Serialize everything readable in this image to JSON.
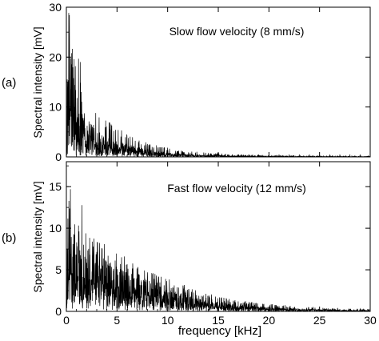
{
  "figure": {
    "xlabel": "frequency [kHz]"
  },
  "chart_data": [
    {
      "type": "line",
      "panel_label": "(a)",
      "title": "Slow flow velocity (8 mm/s)",
      "xlabel": "frequency [kHz]",
      "ylabel": "Spectral intensity [mV]",
      "xlim": [
        0,
        30
      ],
      "ylim": [
        0,
        30
      ],
      "xticks": [
        "0",
        "5",
        "10",
        "15",
        "20",
        "25",
        "30"
      ],
      "xtick_labels_shown": false,
      "yticks": [
        "0",
        "10",
        "20",
        "30"
      ],
      "grid": false,
      "series": [
        {
          "x": [
            0.0,
            0.1,
            0.2,
            0.3,
            0.4,
            0.5,
            0.6,
            0.7,
            0.8,
            0.9,
            1.0,
            1.25,
            1.5,
            1.75,
            2.0,
            2.5,
            3.0,
            3.5,
            4.0,
            5.0,
            6.0,
            7.0,
            8.0,
            9.0,
            10.0,
            11.0,
            12.0,
            14.0,
            16.0,
            18.0,
            20.0,
            25.0,
            30.0
          ],
          "y_peak": [
            2.0,
            20.0,
            30.0,
            30.0,
            30.0,
            28.0,
            25.0,
            22.0,
            22.0,
            19.0,
            16.0,
            24.0,
            15.0,
            13.0,
            12.5,
            11.0,
            10.0,
            9.0,
            8.0,
            6.0,
            5.0,
            4.0,
            3.0,
            2.5,
            2.0,
            1.5,
            1.2,
            0.8,
            0.6,
            0.4,
            0.3,
            0.2,
            0.2
          ],
          "y_mean": [
            0.5,
            5.0,
            12.0,
            14.0,
            13.0,
            12.0,
            11.0,
            10.0,
            9.0,
            8.0,
            7.0,
            6.0,
            5.5,
            5.0,
            4.5,
            3.8,
            3.2,
            2.8,
            2.4,
            1.8,
            1.4,
            1.1,
            0.9,
            0.7,
            0.5,
            0.4,
            0.3,
            0.2,
            0.15,
            0.1,
            0.08,
            0.06,
            0.05
          ]
        }
      ]
    },
    {
      "type": "line",
      "panel_label": "(b)",
      "title": "Fast flow velocity (12 mm/s)",
      "xlabel": "frequency [kHz]",
      "ylabel": "Spectral intensity [mV]",
      "xlim": [
        0,
        30
      ],
      "ylim": [
        0,
        18
      ],
      "xticks": [
        "0",
        "5",
        "10",
        "15",
        "20",
        "25",
        "30"
      ],
      "xtick_labels_shown": true,
      "yticks": [
        "0",
        "5",
        "10",
        "15"
      ],
      "grid": false,
      "series": [
        {
          "x": [
            0.0,
            0.1,
            0.2,
            0.3,
            0.5,
            0.7,
            1.0,
            1.25,
            1.5,
            2.0,
            2.5,
            3.0,
            4.0,
            5.0,
            6.0,
            7.0,
            8.0,
            9.0,
            10.0,
            11.0,
            12.0,
            13.0,
            14.0,
            16.0,
            18.0,
            20.0,
            22.0,
            25.0,
            28.0,
            30.0
          ],
          "y_peak": [
            1.0,
            12.0,
            14.0,
            15.3,
            14.5,
            12.5,
            11.5,
            10.5,
            13.0,
            10.0,
            9.0,
            9.0,
            8.0,
            7.0,
            6.5,
            5.5,
            5.0,
            4.5,
            4.0,
            3.5,
            3.0,
            2.6,
            2.2,
            1.6,
            1.2,
            0.9,
            0.7,
            0.5,
            0.35,
            0.3
          ],
          "y_mean": [
            0.3,
            3.0,
            5.0,
            5.5,
            5.5,
            5.3,
            5.0,
            4.8,
            4.6,
            4.3,
            4.0,
            3.8,
            3.4,
            3.0,
            2.7,
            2.4,
            2.1,
            1.8,
            1.5,
            1.3,
            1.1,
            0.9,
            0.75,
            0.55,
            0.4,
            0.3,
            0.22,
            0.15,
            0.1,
            0.08
          ]
        }
      ]
    }
  ]
}
